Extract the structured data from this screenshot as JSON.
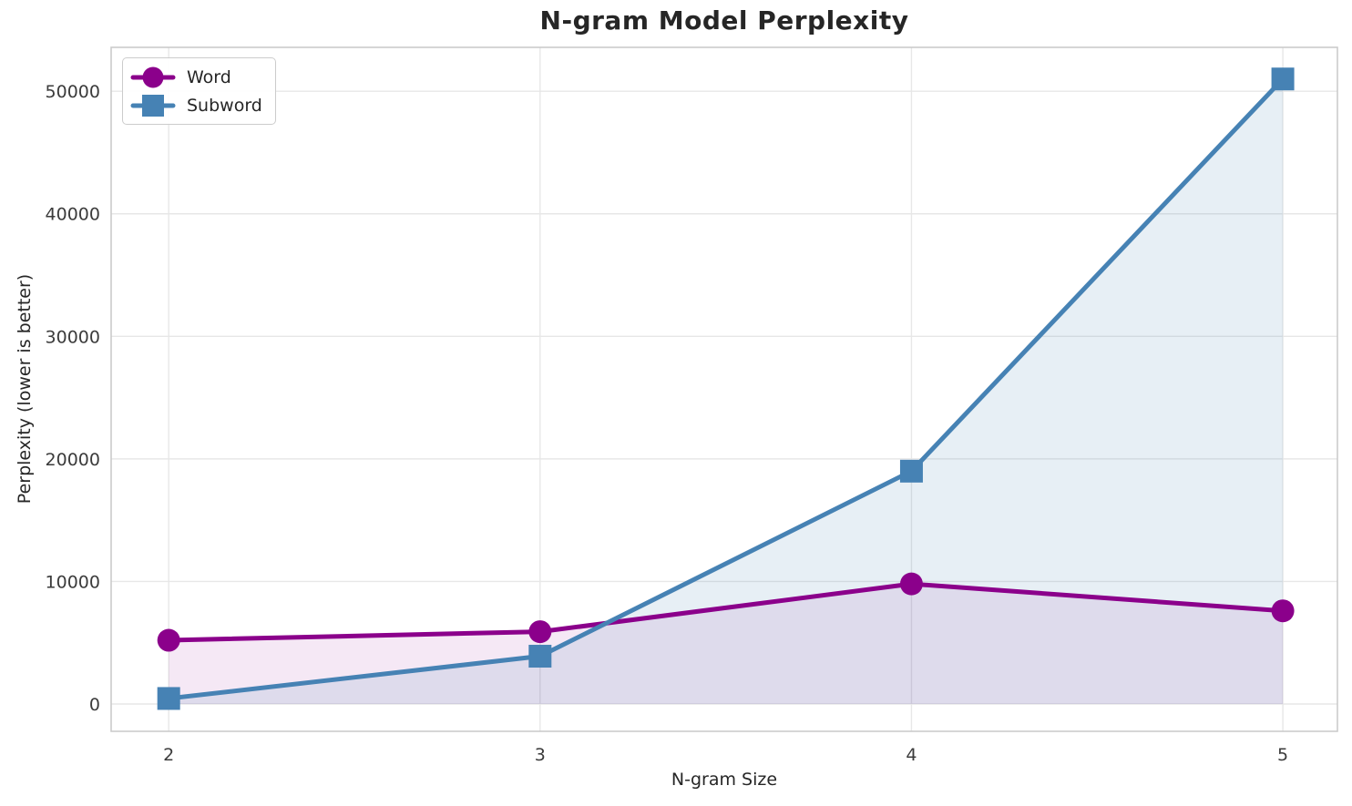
{
  "title": "N-gram Model Perplexity",
  "chart_data": {
    "type": "line",
    "title": "N-gram Model Perplexity",
    "xlabel": "N-gram Size",
    "ylabel": "Perplexity (lower is better)",
    "x": [
      2,
      3,
      4,
      5
    ],
    "xticks": [
      "2",
      "3",
      "4",
      "5"
    ],
    "yticks": [
      0,
      10000,
      20000,
      30000,
      40000,
      50000
    ],
    "xlim": [
      1.845,
      5.147
    ],
    "ylim": [
      -2230,
      53580
    ],
    "grid": true,
    "legend_position": "upper left",
    "series": [
      {
        "name": "Word",
        "color": "#8B008B",
        "marker": "circle",
        "values": [
          5200,
          5900,
          9800,
          7600
        ],
        "fill_to_zero": true,
        "fill_opacity": 0.09
      },
      {
        "name": "Subword",
        "color": "#4682B4",
        "marker": "square",
        "values": [
          450,
          3900,
          19000,
          51000
        ],
        "fill_to_zero": true,
        "fill_opacity": 0.13
      }
    ]
  },
  "colors": {
    "grid": "#E7E7E7",
    "spine": "#CBCBCB",
    "tick_text": "#3B3B3B"
  }
}
